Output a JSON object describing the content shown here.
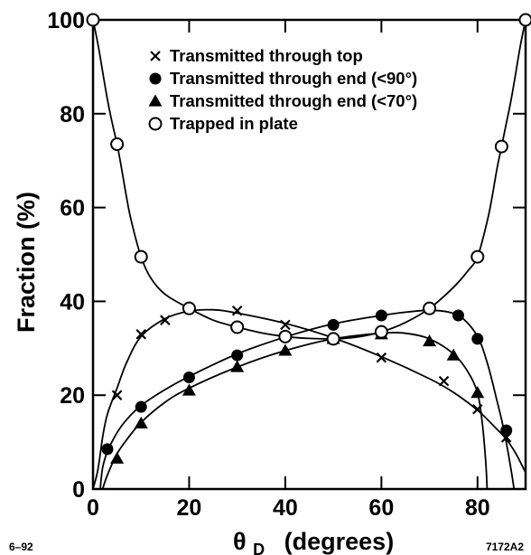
{
  "chart_data": {
    "type": "scatter",
    "title": "",
    "xlabel": {
      "symbol": "θ",
      "subscript": "D",
      "text": "(degrees)"
    },
    "ylabel": "Fraction (%)",
    "xlim": [
      0,
      90
    ],
    "ylim": [
      0,
      100
    ],
    "xticks": [
      0,
      20,
      40,
      60,
      80
    ],
    "yticks": [
      0,
      20,
      40,
      60,
      80,
      100
    ],
    "xtick_labels": [
      "0",
      "20",
      "40",
      "60",
      "80"
    ],
    "ytick_labels": [
      "0",
      "20",
      "40",
      "60",
      "80",
      "100"
    ],
    "grid": false,
    "legend_position": "top-center",
    "series": [
      {
        "name": "Transmitted through top",
        "marker": "x",
        "points": [
          [
            5,
            20
          ],
          [
            10,
            33
          ],
          [
            15,
            36
          ],
          [
            30,
            38
          ],
          [
            40,
            35
          ],
          [
            50,
            32
          ],
          [
            60,
            28
          ],
          [
            73,
            23
          ],
          [
            80,
            17
          ],
          [
            86,
            11
          ]
        ],
        "curve": [
          [
            0,
            0
          ],
          [
            1,
            4
          ],
          [
            2,
            11
          ],
          [
            3,
            16
          ],
          [
            5,
            21.5
          ],
          [
            7,
            27
          ],
          [
            10,
            32.5
          ],
          [
            15,
            36.3
          ],
          [
            20,
            37.9
          ],
          [
            25,
            38.2
          ],
          [
            30,
            37.5
          ],
          [
            40,
            35.3
          ],
          [
            50,
            32.2
          ],
          [
            60,
            28.2
          ],
          [
            70,
            23.5
          ],
          [
            75,
            20.6
          ],
          [
            80,
            16.8
          ],
          [
            84,
            12.8
          ],
          [
            86,
            10.6
          ],
          [
            88,
            7.5
          ],
          [
            90,
            3.5
          ]
        ]
      },
      {
        "name": "Transmitted through end (<90°)",
        "marker": "filled-circle",
        "points": [
          [
            3,
            8.5
          ],
          [
            10,
            17.5
          ],
          [
            20,
            23.8
          ],
          [
            30,
            28.5
          ],
          [
            40,
            32.5
          ],
          [
            50,
            35
          ],
          [
            60,
            37
          ],
          [
            76,
            37
          ],
          [
            80,
            32
          ],
          [
            86,
            12.5
          ]
        ],
        "curve": [
          [
            1.5,
            0
          ],
          [
            2,
            4.5
          ],
          [
            3,
            8
          ],
          [
            5,
            12
          ],
          [
            7,
            14.8
          ],
          [
            10,
            17.8
          ],
          [
            15,
            21.2
          ],
          [
            20,
            24
          ],
          [
            30,
            28.8
          ],
          [
            40,
            32.4
          ],
          [
            50,
            35.2
          ],
          [
            60,
            37
          ],
          [
            66,
            37.8
          ],
          [
            70,
            38.1
          ],
          [
            74,
            37.7
          ],
          [
            77,
            36.3
          ],
          [
            80,
            32.5
          ],
          [
            82,
            27
          ],
          [
            84,
            19
          ],
          [
            85.5,
            12.5
          ],
          [
            87,
            4
          ],
          [
            87.6,
            0
          ]
        ]
      },
      {
        "name": "Transmitted through end (<70°)",
        "marker": "filled-triangle",
        "points": [
          [
            5,
            6.5
          ],
          [
            10,
            14
          ],
          [
            20,
            21
          ],
          [
            30,
            26
          ],
          [
            40,
            29.5
          ],
          [
            50,
            32
          ],
          [
            60,
            33
          ],
          [
            70,
            31.5
          ],
          [
            75,
            28.5
          ],
          [
            80,
            20.5
          ]
        ],
        "curve": [
          [
            2,
            0
          ],
          [
            3,
            3
          ],
          [
            5,
            7.5
          ],
          [
            7,
            10.5
          ],
          [
            10,
            14.2
          ],
          [
            15,
            18.5
          ],
          [
            20,
            21.5
          ],
          [
            30,
            26
          ],
          [
            40,
            29.5
          ],
          [
            50,
            32
          ],
          [
            60,
            33.2
          ],
          [
            65,
            33.2
          ],
          [
            70,
            32
          ],
          [
            75,
            28.8
          ],
          [
            78,
            25
          ],
          [
            80,
            20.5
          ],
          [
            81,
            14
          ],
          [
            81.7,
            6
          ],
          [
            82,
            0
          ]
        ]
      },
      {
        "name": "Trapped in plate",
        "marker": "open-circle",
        "points": [
          [
            0,
            100
          ],
          [
            5,
            73.5
          ],
          [
            10,
            49.5
          ],
          [
            20,
            38.5
          ],
          [
            30,
            34.5
          ],
          [
            40,
            32.5
          ],
          [
            50,
            32
          ],
          [
            60,
            33.5
          ],
          [
            70,
            38.5
          ],
          [
            80,
            49.5
          ],
          [
            85,
            73
          ],
          [
            90,
            100
          ]
        ],
        "curve": [
          [
            0,
            100
          ],
          [
            1,
            95
          ],
          [
            2,
            89
          ],
          [
            3,
            83
          ],
          [
            4,
            78
          ],
          [
            5,
            73.5
          ],
          [
            6,
            68
          ],
          [
            7,
            62
          ],
          [
            8,
            57
          ],
          [
            10,
            49.5
          ],
          [
            12,
            45
          ],
          [
            15,
            41.5
          ],
          [
            20,
            38.5
          ],
          [
            25,
            36
          ],
          [
            30,
            34.5
          ],
          [
            35,
            33.3
          ],
          [
            40,
            32.5
          ],
          [
            45,
            32.1
          ],
          [
            50,
            32
          ],
          [
            55,
            32.4
          ],
          [
            60,
            33.5
          ],
          [
            65,
            35.5
          ],
          [
            70,
            38.5
          ],
          [
            75,
            43
          ],
          [
            78,
            46.5
          ],
          [
            80,
            49.5
          ],
          [
            82,
            57
          ],
          [
            83,
            62
          ],
          [
            84,
            68
          ],
          [
            85,
            73
          ],
          [
            86,
            78
          ],
          [
            87,
            83
          ],
          [
            88,
            89
          ],
          [
            89,
            95
          ],
          [
            90,
            100
          ]
        ]
      }
    ]
  },
  "footer": {
    "left_note": "6–92",
    "right_note": "7172A2"
  }
}
